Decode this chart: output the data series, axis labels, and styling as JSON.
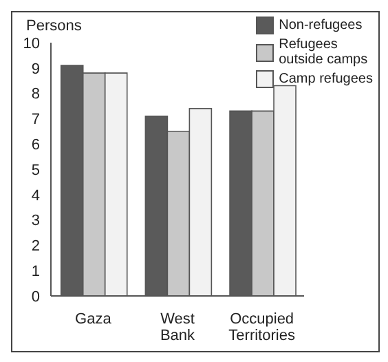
{
  "chart_data": {
    "type": "bar",
    "ylabel": "Persons",
    "categories": [
      "Gaza",
      "West\nBank",
      "Occupied\nTerritories"
    ],
    "series": [
      {
        "name": "Non-refugees",
        "color": "#5a5a5a",
        "values": [
          9.1,
          7.1,
          7.3
        ]
      },
      {
        "name": "Refugees\noutside camps",
        "color": "#c8c8c8",
        "values": [
          8.8,
          6.5,
          7.3
        ]
      },
      {
        "name": "Camp refugees",
        "color": "#f2f2f2",
        "values": [
          8.8,
          7.4,
          8.3
        ]
      }
    ],
    "ylim": [
      0,
      10
    ],
    "yticks": [
      0,
      1,
      2,
      3,
      4,
      5,
      6,
      7,
      8,
      9,
      10
    ],
    "grid": false,
    "legend": "top right"
  }
}
